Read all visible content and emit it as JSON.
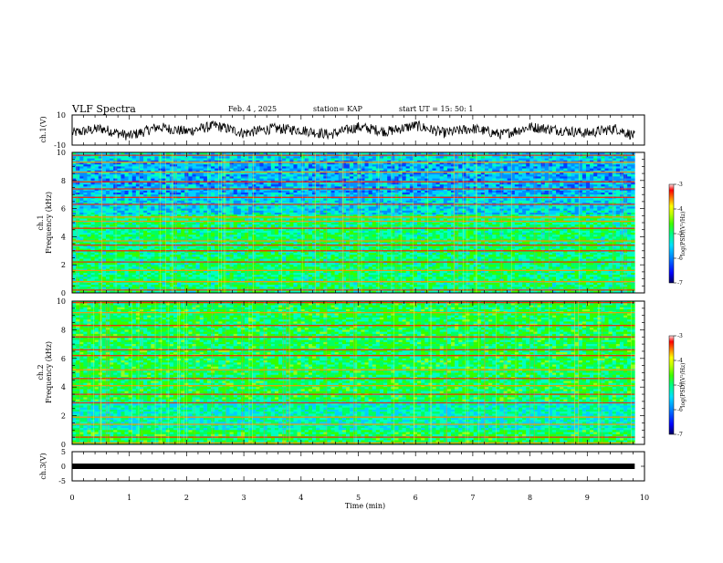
{
  "header": {
    "title": "VLF Spectra",
    "date": "Feb. 4 , 2025",
    "station": "station= KAP",
    "start": "start  UT =   15: 50: 1"
  },
  "colors": {
    "axis": "#000000",
    "trace": "#000000",
    "colormap": [
      "#000060",
      "#0000ff",
      "#0080ff",
      "#00e0ff",
      "#00ff80",
      "#40ff00",
      "#c0ff00",
      "#ffff00",
      "#ff8000",
      "#ff0000",
      "#ffffff"
    ]
  },
  "chart_data": [
    {
      "type": "line",
      "name": "ch1-waveform",
      "ylabel": "ch.1(V)",
      "ylim": [
        -10,
        10
      ],
      "yticks": [
        "10",
        "-10"
      ],
      "xlim": [
        0,
        10
      ],
      "note_values": "waveform fluctuates roughly between -6 and 6 V over 0–9.83 min",
      "x": [
        0,
        0.5,
        1,
        1.5,
        2,
        2.5,
        3,
        3.5,
        4,
        4.5,
        5,
        5.5,
        6,
        6.5,
        7,
        7.5,
        8,
        8.5,
        9,
        9.5,
        9.83
      ],
      "y": [
        -2,
        1,
        -4,
        2,
        -1,
        3,
        -2,
        1,
        0,
        -3,
        2,
        -1,
        3,
        -2,
        1,
        -3,
        2,
        0,
        -2,
        1,
        -4
      ]
    },
    {
      "type": "heatmap",
      "name": "ch1-spectrogram",
      "ylabel": "ch.1\nFrequency (kHz)",
      "ylim": [
        0,
        10
      ],
      "yticks": [
        "0",
        "2",
        "4",
        "6",
        "8",
        "10"
      ],
      "xlim": [
        0,
        10
      ],
      "data_end_min": 9.83,
      "colorbar": {
        "label": "log(PSD)(V²/Hz)",
        "range": [
          -7,
          -3
        ],
        "ticks": [
          "-3",
          "-4",
          "-5",
          "-6",
          "-7"
        ]
      },
      "lines_khz": [
        0.2,
        0.8,
        1.6,
        2.2,
        3.0,
        3.4,
        3.7,
        4.6,
        5.1,
        5.4,
        6.3,
        6.8,
        7.4,
        7.9,
        8.6,
        9.3,
        9.8
      ]
    },
    {
      "type": "heatmap",
      "name": "ch2-spectrogram",
      "ylabel": "ch.2\nFrequency (kHz)",
      "ylim": [
        0,
        10
      ],
      "yticks": [
        "0",
        "2",
        "4",
        "6",
        "8",
        "10"
      ],
      "xlim": [
        0,
        10
      ],
      "data_end_min": 9.83,
      "colorbar": {
        "label": "log(PSD)(V²/Hz)",
        "range": [
          -7,
          -3
        ],
        "ticks": [
          "-3",
          "-4",
          "-5",
          "-6",
          "-7"
        ]
      },
      "lines_khz": [
        0.1,
        0.5,
        1.4,
        1.9,
        2.9,
        3.5,
        4.1,
        4.6,
        5.2,
        6.2,
        6.6,
        7.5,
        8.3,
        9.2,
        9.9
      ]
    },
    {
      "type": "line",
      "name": "ch3-waveform",
      "ylabel": "ch.3(V)",
      "ylim": [
        -5,
        5
      ],
      "yticks": [
        "5",
        "0",
        "-5"
      ],
      "xlim": [
        0,
        10
      ],
      "x": [
        0,
        9.83
      ],
      "y": [
        0,
        0
      ]
    }
  ],
  "xaxis": {
    "label": "Time  (min)",
    "ticks": [
      "0",
      "1",
      "2",
      "3",
      "4",
      "5",
      "6",
      "7",
      "8",
      "9",
      "10"
    ]
  }
}
